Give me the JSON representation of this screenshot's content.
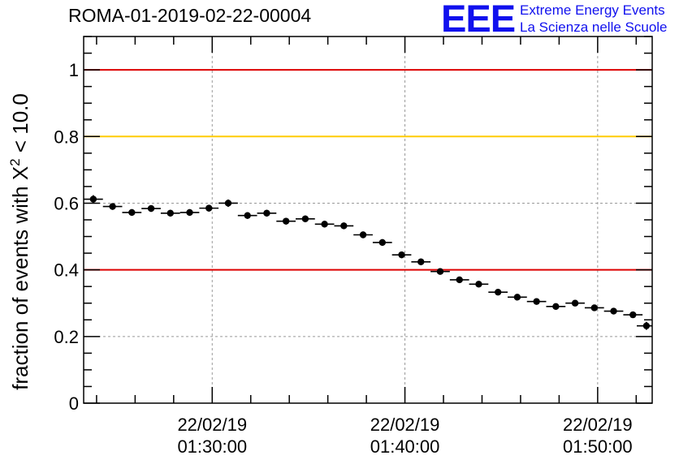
{
  "header": {
    "title": "ROMA-01-2019-02-22-00004",
    "logo_mark": "EEE",
    "logo_line1": "Extreme Energy Events",
    "logo_line2": "La Scienza nelle Scuole"
  },
  "chart_data": {
    "type": "scatter",
    "title": "ROMA-01-2019-02-22-00004",
    "ylabel_main": "fraction of events with X",
    "ylabel_sup": "2",
    "ylabel_tail": " < 10.0",
    "xlabel": "",
    "x_unit": "minutes after 22/02/19 01:20:00",
    "xlim": [
      0,
      29.5
    ],
    "ylim": [
      0,
      1.1
    ],
    "grid": true,
    "x_ticks": [
      {
        "value": 6.67,
        "date": "22/02/19",
        "time": "01:30:00"
      },
      {
        "value": 16.67,
        "date": "22/02/19",
        "time": "01:40:00"
      },
      {
        "value": 26.67,
        "date": "22/02/19",
        "time": "01:50:00"
      }
    ],
    "y_ticks": [
      {
        "value": 0,
        "label": "0"
      },
      {
        "value": 0.2,
        "label": "0.2"
      },
      {
        "value": 0.4,
        "label": "0.4"
      },
      {
        "value": 0.6,
        "label": "0.6"
      },
      {
        "value": 0.8,
        "label": "0.8"
      },
      {
        "value": 1.0,
        "label": "1"
      }
    ],
    "reference_lines": [
      {
        "y": 1.0,
        "color": "#dd0000"
      },
      {
        "y": 0.8,
        "color": "#ffcc00"
      },
      {
        "y": 0.4,
        "color": "#dd0000"
      }
    ],
    "bin_width": 1.0,
    "series": [
      {
        "x": [
          0.5,
          1.5,
          2.5,
          3.5,
          4.5,
          5.5,
          6.5,
          7.5,
          8.5,
          9.5,
          10.5,
          11.5,
          12.5,
          13.5,
          14.5,
          15.5,
          16.5,
          17.5,
          18.5,
          19.5,
          20.5,
          21.5,
          22.5,
          23.5,
          24.5,
          25.5,
          26.5,
          27.5,
          28.5,
          29.2
        ],
        "y": [
          0.612,
          0.59,
          0.572,
          0.584,
          0.57,
          0.572,
          0.585,
          0.6,
          0.563,
          0.57,
          0.546,
          0.553,
          0.537,
          0.532,
          0.505,
          0.482,
          0.445,
          0.424,
          0.395,
          0.37,
          0.357,
          0.333,
          0.318,
          0.305,
          0.29,
          0.3,
          0.286,
          0.276,
          0.265,
          0.232
        ],
        "yerr": [
          0.012,
          0.01,
          0.01,
          0.01,
          0.01,
          0.01,
          0.01,
          0.011,
          0.01,
          0.01,
          0.01,
          0.01,
          0.01,
          0.01,
          0.01,
          0.01,
          0.01,
          0.01,
          0.009,
          0.008,
          0.008,
          0.007,
          0.007,
          0.007,
          0.007,
          0.007,
          0.007,
          0.007,
          0.007,
          0.012
        ]
      }
    ]
  }
}
